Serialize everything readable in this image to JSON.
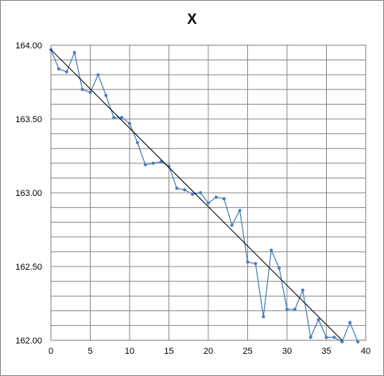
{
  "chart_data": {
    "type": "scatter",
    "title": "X",
    "xlim": [
      0,
      40
    ],
    "ylim": [
      162.0,
      164.0
    ],
    "x_ticks": [
      "0",
      "5",
      "10",
      "15",
      "20",
      "25",
      "30",
      "35",
      "40"
    ],
    "y_ticks": [
      "162.00",
      "162.50",
      "163.00",
      "163.50",
      "164.00"
    ],
    "grid": true,
    "minor_grid": true,
    "legend": "none",
    "series": [
      {
        "style": "line-with-markers",
        "color": "#4a7ebb",
        "x": [
          0,
          1,
          2,
          3,
          4,
          5,
          6,
          7,
          8,
          9,
          10,
          11,
          12,
          13,
          14,
          15,
          16,
          17,
          18,
          19,
          20,
          21,
          22,
          23,
          24,
          25,
          26,
          27,
          28,
          29,
          30,
          31,
          32,
          33,
          34,
          35,
          36,
          37,
          38,
          39
        ],
        "y": [
          163.97,
          163.84,
          163.82,
          163.95,
          163.7,
          163.68,
          163.8,
          163.66,
          163.51,
          163.51,
          163.47,
          163.34,
          163.19,
          163.2,
          163.21,
          163.18,
          163.03,
          163.02,
          162.99,
          163.0,
          162.93,
          162.97,
          162.96,
          162.78,
          162.88,
          162.53,
          162.52,
          162.16,
          162.61,
          162.49,
          162.21,
          162.21,
          162.34,
          162.02,
          162.14,
          162.02,
          162.02,
          161.99,
          162.12,
          161.99
        ]
      },
      {
        "style": "trendline",
        "color": "#000000",
        "x": [
          0,
          37
        ],
        "y": [
          163.97,
          162.0
        ]
      }
    ]
  }
}
